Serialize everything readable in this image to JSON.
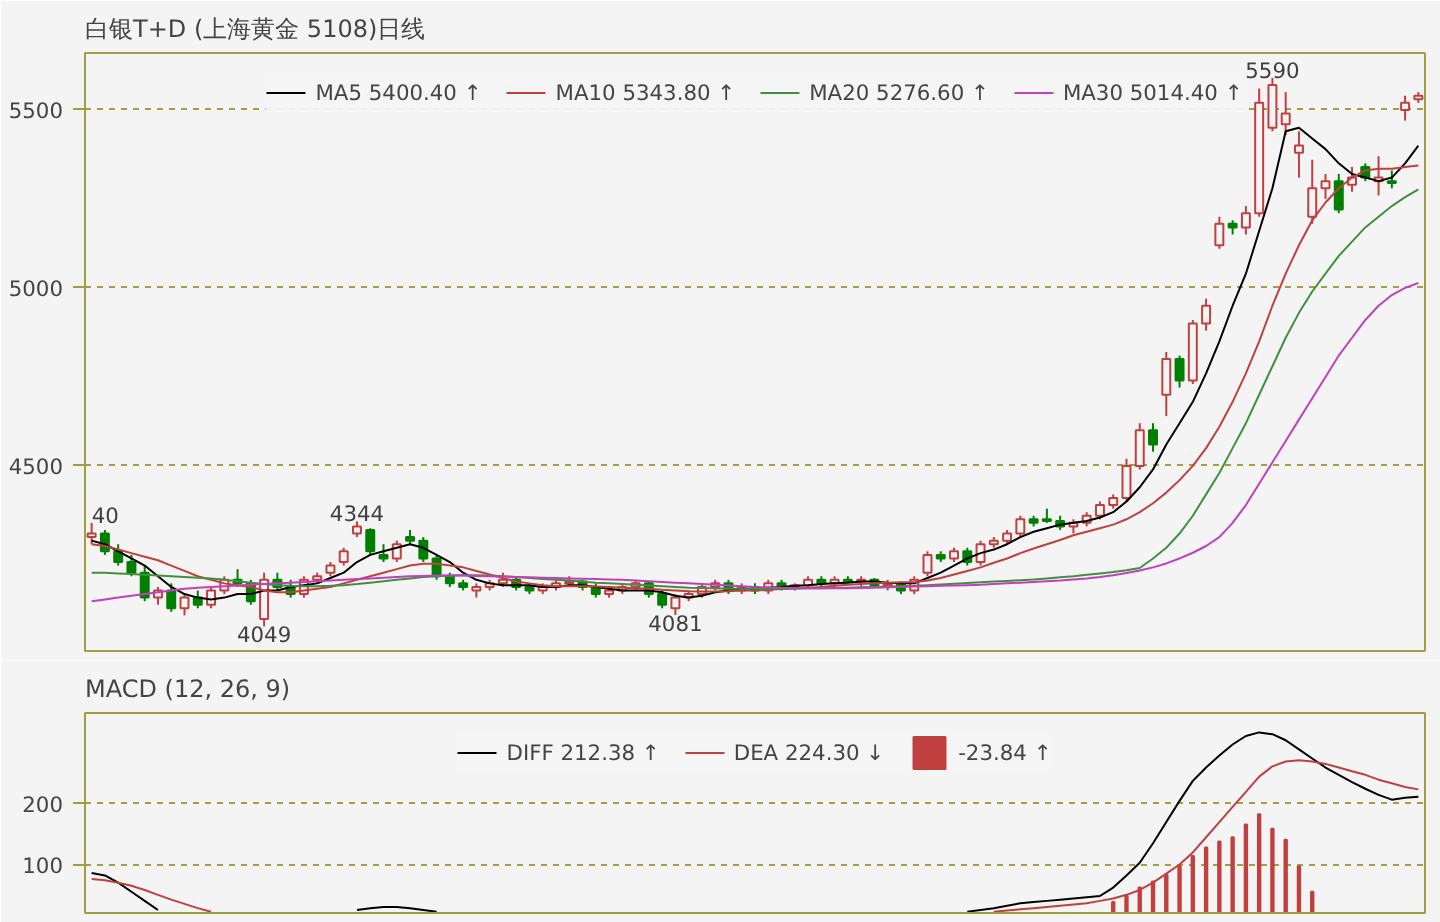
{
  "chart_data": [
    {
      "type": "candlestick",
      "title": "白银T+D (上海黄金 5108)日线",
      "categories": [
        null,
        null,
        null,
        null,
        null,
        null,
        null,
        null,
        null,
        null,
        null,
        null,
        null,
        null,
        null,
        null,
        null,
        null,
        null,
        null,
        null,
        null,
        null,
        null,
        null,
        null,
        null,
        null,
        null,
        null,
        null,
        null,
        null,
        null,
        null,
        null,
        null,
        null,
        null,
        null,
        null,
        null,
        null,
        null,
        null,
        null,
        null,
        null,
        null,
        null,
        null,
        null,
        null,
        null,
        null,
        null,
        null,
        null,
        null,
        null,
        null,
        null,
        null,
        null,
        null,
        null,
        null,
        null,
        null,
        null,
        null,
        null,
        null,
        null,
        null,
        null,
        null,
        null,
        null,
        null,
        null,
        null,
        null,
        null,
        null,
        null,
        null,
        null,
        null,
        null,
        null,
        null,
        null,
        null,
        null,
        null,
        null,
        null,
        null,
        null,
        null
      ],
      "ohlc": [
        [
          4300,
          4340,
          4280,
          4310
        ],
        [
          4310,
          4320,
          4250,
          4260
        ],
        [
          4260,
          4280,
          4220,
          4230
        ],
        [
          4230,
          4250,
          4190,
          4200
        ],
        [
          4200,
          4220,
          4120,
          4130
        ],
        [
          4130,
          4160,
          4110,
          4150
        ],
        [
          4150,
          4170,
          4090,
          4100
        ],
        [
          4100,
          4140,
          4080,
          4130
        ],
        [
          4130,
          4150,
          4100,
          4110
        ],
        [
          4110,
          4160,
          4100,
          4150
        ],
        [
          4150,
          4190,
          4140,
          4180
        ],
        [
          4180,
          4210,
          4160,
          4170
        ],
        [
          4170,
          4180,
          4110,
          4120
        ],
        [
          4070,
          4200,
          4049,
          4180
        ],
        [
          4180,
          4200,
          4150,
          4160
        ],
        [
          4160,
          4180,
          4130,
          4140
        ],
        [
          4140,
          4190,
          4130,
          4180
        ],
        [
          4180,
          4200,
          4170,
          4190
        ],
        [
          4200,
          4230,
          4190,
          4220
        ],
        [
          4230,
          4270,
          4220,
          4260
        ],
        [
          4310,
          4344,
          4300,
          4330
        ],
        [
          4320,
          4325,
          4250,
          4260
        ],
        [
          4250,
          4280,
          4230,
          4240
        ],
        [
          4240,
          4290,
          4230,
          4280
        ],
        [
          4300,
          4320,
          4280,
          4290
        ],
        [
          4290,
          4300,
          4230,
          4240
        ],
        [
          4240,
          4250,
          4180,
          4190
        ],
        [
          4190,
          4200,
          4160,
          4170
        ],
        [
          4170,
          4180,
          4150,
          4160
        ],
        [
          4150,
          4170,
          4130,
          4160
        ],
        [
          4160,
          4180,
          4150,
          4170
        ],
        [
          4170,
          4200,
          4160,
          4180
        ],
        [
          4180,
          4190,
          4150,
          4160
        ],
        [
          4160,
          4170,
          4140,
          4150
        ],
        [
          4150,
          4170,
          4140,
          4160
        ],
        [
          4160,
          4180,
          4150,
          4170
        ],
        [
          4170,
          4190,
          4160,
          4175
        ],
        [
          4175,
          4180,
          4150,
          4160
        ],
        [
          4160,
          4170,
          4130,
          4140
        ],
        [
          4140,
          4160,
          4130,
          4150
        ],
        [
          4150,
          4170,
          4140,
          4160
        ],
        [
          4160,
          4180,
          4150,
          4170
        ],
        [
          4170,
          4175,
          4130,
          4140
        ],
        [
          4140,
          4150,
          4100,
          4110
        ],
        [
          4100,
          4140,
          4081,
          4130
        ],
        [
          4130,
          4150,
          4120,
          4140
        ],
        [
          4140,
          4170,
          4130,
          4160
        ],
        [
          4160,
          4180,
          4150,
          4170
        ],
        [
          4170,
          4180,
          4140,
          4150
        ],
        [
          4150,
          4170,
          4140,
          4160
        ],
        [
          4160,
          4170,
          4140,
          4150
        ],
        [
          4150,
          4180,
          4140,
          4170
        ],
        [
          4170,
          4180,
          4150,
          4160
        ],
        [
          4160,
          4170,
          4150,
          4165
        ],
        [
          4165,
          4190,
          4160,
          4180
        ],
        [
          4180,
          4190,
          4160,
          4170
        ],
        [
          4170,
          4190,
          4160,
          4180
        ],
        [
          4180,
          4190,
          4170,
          4175
        ],
        [
          4175,
          4190,
          4160,
          4180
        ],
        [
          4180,
          4185,
          4160,
          4165
        ],
        [
          4165,
          4180,
          4150,
          4170
        ],
        [
          4170,
          4175,
          4140,
          4150
        ],
        [
          4150,
          4190,
          4140,
          4180
        ],
        [
          4200,
          4260,
          4190,
          4250
        ],
        [
          4250,
          4260,
          4230,
          4240
        ],
        [
          4240,
          4270,
          4230,
          4260
        ],
        [
          4260,
          4270,
          4220,
          4230
        ],
        [
          4230,
          4290,
          4220,
          4280
        ],
        [
          4280,
          4300,
          4270,
          4290
        ],
        [
          4290,
          4320,
          4280,
          4310
        ],
        [
          4310,
          4360,
          4300,
          4350
        ],
        [
          4350,
          4360,
          4330,
          4340
        ],
        [
          4350,
          4380,
          4340,
          4345
        ],
        [
          4345,
          4360,
          4320,
          4330
        ],
        [
          4330,
          4350,
          4310,
          4340
        ],
        [
          4340,
          4370,
          4330,
          4360
        ],
        [
          4360,
          4400,
          4350,
          4390
        ],
        [
          4390,
          4420,
          4380,
          4410
        ],
        [
          4410,
          4520,
          4400,
          4500
        ],
        [
          4500,
          4620,
          4490,
          4600
        ],
        [
          4600,
          4620,
          4540,
          4560
        ],
        [
          4700,
          4820,
          4640,
          4800
        ],
        [
          4800,
          4810,
          4720,
          4740
        ],
        [
          4740,
          4910,
          4730,
          4900
        ],
        [
          4900,
          4970,
          4880,
          4950
        ],
        [
          5120,
          5200,
          5110,
          5180
        ],
        [
          5180,
          5190,
          5150,
          5170
        ],
        [
          5170,
          5230,
          5150,
          5210
        ],
        [
          5210,
          5560,
          5200,
          5520
        ],
        [
          5450,
          5590,
          5440,
          5570
        ],
        [
          5460,
          5550,
          5430,
          5490
        ],
        [
          5380,
          5440,
          5310,
          5400
        ],
        [
          5200,
          5360,
          5180,
          5280
        ],
        [
          5280,
          5320,
          5250,
          5300
        ],
        [
          5300,
          5320,
          5210,
          5220
        ],
        [
          5290,
          5340,
          5270,
          5310
        ],
        [
          5340,
          5350,
          5300,
          5310
        ],
        [
          5300,
          5370,
          5260,
          5310
        ],
        [
          5300,
          5330,
          5280,
          5295
        ],
        [
          5500,
          5540,
          5470,
          5520
        ],
        [
          5530,
          5550,
          5520,
          5540
        ]
      ],
      "colors": [
        "#c04040",
        "#008000",
        "#008000",
        "#008000",
        "#008000",
        "#c04040",
        "#008000",
        "#c04040",
        "#008000",
        "#c04040",
        "#c04040",
        "#008000",
        "#008000",
        "#c04040",
        "#008000",
        "#008000",
        "#c04040",
        "#c04040",
        "#c04040",
        "#c04040",
        "#c04040",
        "#008000",
        "#008000",
        "#c04040",
        "#008000",
        "#008000",
        "#008000",
        "#008000",
        "#008000",
        "#c04040",
        "#c04040",
        "#c04040",
        "#008000",
        "#008000",
        "#c04040",
        "#c04040",
        "#c04040",
        "#008000",
        "#008000",
        "#c04040",
        "#c04040",
        "#c04040",
        "#008000",
        "#008000",
        "#c04040",
        "#c04040",
        "#c04040",
        "#c04040",
        "#008000",
        "#c04040",
        "#008000",
        "#c04040",
        "#008000",
        "#c04040",
        "#c04040",
        "#008000",
        "#c04040",
        "#008000",
        "#c04040",
        "#008000",
        "#c04040",
        "#008000",
        "#c04040",
        "#c04040",
        "#008000",
        "#c04040",
        "#008000",
        "#c04040",
        "#c04040",
        "#c04040",
        "#c04040",
        "#008000",
        "#008000",
        "#008000",
        "#c04040",
        "#c04040",
        "#c04040",
        "#c04040",
        "#c04040",
        "#c04040",
        "#008000",
        "#c04040",
        "#008000",
        "#c04040",
        "#c04040",
        "#c04040",
        "#008000",
        "#c04040",
        "#c04040",
        "#c04040",
        "#c04040",
        "#c04040",
        "#c04040",
        "#c04040",
        "#008000",
        "#c04040",
        "#008000",
        "#c04040",
        "#008000",
        "#c04040",
        "#c04040"
      ],
      "series": [
        {
          "name": "MA5 5400.40 ↑",
          "type": "line",
          "color": "#000000",
          "values": [
            4290,
            4280,
            4260,
            4240,
            4220,
            4190,
            4160,
            4140,
            4130,
            4125,
            4130,
            4140,
            4140,
            4150,
            4150,
            4160,
            4165,
            4170,
            4185,
            4200,
            4230,
            4250,
            4260,
            4270,
            4280,
            4270,
            4250,
            4230,
            4200,
            4180,
            4170,
            4165,
            4165,
            4165,
            4160,
            4160,
            4165,
            4165,
            4160,
            4155,
            4150,
            4150,
            4150,
            4145,
            4135,
            4130,
            4135,
            4145,
            4150,
            4155,
            4155,
            4158,
            4160,
            4163,
            4165,
            4168,
            4170,
            4172,
            4175,
            4175,
            4172,
            4170,
            4170,
            4185,
            4200,
            4220,
            4240,
            4255,
            4265,
            4280,
            4300,
            4315,
            4325,
            4335,
            4340,
            4345,
            4355,
            4370,
            4400,
            4440,
            4490,
            4560,
            4620,
            4680,
            4760,
            4850,
            4950,
            5040,
            5160,
            5280,
            5440,
            5450,
            5420,
            5390,
            5350,
            5320,
            5310,
            5300,
            5310,
            5350,
            5400
          ]
        },
        {
          "name": "MA10 5343.80 ↑",
          "type": "line",
          "color": "#c04040",
          "values": [
            4280,
            4275,
            4265,
            4255,
            4245,
            4235,
            4220,
            4205,
            4190,
            4180,
            4170,
            4165,
            4160,
            4150,
            4145,
            4145,
            4150,
            4155,
            4160,
            4170,
            4180,
            4190,
            4200,
            4210,
            4220,
            4225,
            4225,
            4220,
            4215,
            4205,
            4195,
            4185,
            4175,
            4170,
            4165,
            4162,
            4162,
            4162,
            4161,
            4160,
            4158,
            4156,
            4155,
            4152,
            4150,
            4148,
            4147,
            4147,
            4148,
            4150,
            4150,
            4152,
            4154,
            4156,
            4158,
            4160,
            4163,
            4166,
            4168,
            4170,
            4172,
            4173,
            4173,
            4178,
            4185,
            4195,
            4205,
            4215,
            4228,
            4240,
            4255,
            4268,
            4280,
            4292,
            4305,
            4315,
            4325,
            4335,
            4350,
            4370,
            4395,
            4425,
            4460,
            4500,
            4550,
            4610,
            4680,
            4760,
            4850,
            4950,
            5040,
            5120,
            5190,
            5240,
            5280,
            5310,
            5330,
            5335,
            5335,
            5340,
            5344
          ]
        },
        {
          "name": "MA20 5276.60 ↑",
          "type": "line",
          "color": "#409040",
          "values": [
            4200,
            4200,
            4198,
            4196,
            4194,
            4192,
            4190,
            4188,
            4186,
            4184,
            4180,
            4176,
            4172,
            4168,
            4165,
            4163,
            4162,
            4162,
            4163,
            4165,
            4168,
            4172,
            4176,
            4180,
            4184,
            4188,
            4190,
            4192,
            4193,
            4193,
            4192,
            4190,
            4188,
            4185,
            4182,
            4180,
            4178,
            4175,
            4172,
            4170,
            4168,
            4166,
            4164,
            4162,
            4160,
            4158,
            4157,
            4156,
            4155,
            4155,
            4155,
            4155,
            4155,
            4155,
            4156,
            4156,
            4157,
            4158,
            4159,
            4160,
            4161,
            4162,
            4163,
            4165,
            4167,
            4169,
            4171,
            4173,
            4175,
            4177,
            4179,
            4181,
            4184,
            4187,
            4190,
            4194,
            4198,
            4202,
            4207,
            4213,
            4240,
            4270,
            4310,
            4360,
            4420,
            4480,
            4550,
            4620,
            4700,
            4780,
            4860,
            4930,
            4990,
            5040,
            5090,
            5130,
            5170,
            5200,
            5230,
            5255,
            5277
          ]
        },
        {
          "name": "MA30 5014.40 ↑",
          "type": "line",
          "color": "#c040c0",
          "values": [
            4120,
            4125,
            4130,
            4135,
            4140,
            4145,
            4150,
            4155,
            4158,
            4160,
            4162,
            4164,
            4166,
            4168,
            4170,
            4172,
            4174,
            4176,
            4178,
            4180,
            4182,
            4184,
            4186,
            4188,
            4190,
            4191,
            4192,
            4192,
            4192,
            4191,
            4190,
            4189,
            4188,
            4187,
            4186,
            4185,
            4184,
            4183,
            4182,
            4181,
            4180,
            4178,
            4176,
            4174,
            4172,
            4170,
            4168,
            4166,
            4164,
            4162,
            4160,
            4159,
            4158,
            4157,
            4156,
            4156,
            4156,
            4156,
            4157,
            4158,
            4159,
            4160,
            4161,
            4162,
            4163,
            4164,
            4165,
            4166,
            4168,
            4170,
            4172,
            4174,
            4176,
            4178,
            4181,
            4184,
            4188,
            4193,
            4199,
            4206,
            4215,
            4226,
            4240,
            4256,
            4275,
            4300,
            4340,
            4390,
            4450,
            4510,
            4570,
            4630,
            4690,
            4750,
            4810,
            4860,
            4910,
            4950,
            4980,
            5000,
            5014
          ]
        }
      ],
      "ylim": [
        3980,
        5660
      ],
      "yticks": [
        4500,
        5000,
        5500
      ],
      "grid": "y",
      "legend": "top",
      "tick_labels": "y",
      "annotations": [
        {
          "text": "40",
          "y": 4340
        },
        {
          "text": "4344",
          "y": 4344
        },
        {
          "text": "4049",
          "y": 4049
        },
        {
          "text": "4081",
          "y": 4081
        },
        {
          "text": "5590",
          "y": 5590
        }
      ]
    },
    {
      "type": "line",
      "title": "MACD (12, 26, 9)",
      "categories": [
        null,
        null,
        null,
        null,
        null,
        null,
        null,
        null,
        null,
        null,
        null,
        null,
        null,
        null,
        null,
        null,
        null,
        null,
        null,
        null,
        null,
        null,
        null,
        null,
        null,
        null,
        null,
        null,
        null,
        null,
        null,
        null,
        null,
        null,
        null,
        null,
        null,
        null,
        null,
        null,
        null,
        null,
        null,
        null,
        null,
        null,
        null,
        null,
        null,
        null,
        null,
        null,
        null,
        null,
        null,
        null,
        null,
        null,
        null,
        null,
        null,
        null,
        null,
        null,
        null,
        null,
        null,
        null,
        null,
        null,
        null,
        null,
        null,
        null,
        null,
        null,
        null,
        null,
        null,
        null,
        null,
        null,
        null,
        null,
        null,
        null,
        null,
        null,
        null,
        null,
        null,
        null,
        null,
        null,
        null,
        null,
        null,
        null,
        null,
        null,
        null
      ],
      "series": [
        {
          "name": "DIFF 212.38 ↑",
          "type": "line",
          "color": "#000000",
          "values": [
            86,
            82,
            70,
            55,
            40,
            25,
            null,
            null,
            null,
            null,
            null,
            null,
            null,
            null,
            null,
            null,
            null,
            null,
            null,
            null,
            25,
            28,
            30,
            30,
            28,
            25,
            22,
            null,
            null,
            null,
            null,
            null,
            null,
            null,
            null,
            null,
            null,
            null,
            null,
            null,
            null,
            null,
            null,
            null,
            null,
            null,
            null,
            null,
            null,
            null,
            null,
            null,
            null,
            null,
            null,
            null,
            null,
            null,
            null,
            null,
            null,
            null,
            null,
            null,
            null,
            null,
            22,
            25,
            28,
            32,
            36,
            38,
            40,
            42,
            44,
            46,
            48,
            62,
            82,
            103,
            135,
            170,
            205,
            238,
            260,
            280,
            298,
            312,
            318,
            315,
            305,
            290,
            275,
            260,
            248,
            236,
            225,
            215,
            207,
            210,
            212
          ]
        },
        {
          "name": "DEA 224.30 ↓",
          "type": "line",
          "color": "#c04040",
          "values": [
            76,
            74,
            70,
            65,
            58,
            50,
            42,
            35,
            28,
            22,
            null,
            null,
            null,
            null,
            null,
            null,
            null,
            null,
            null,
            null,
            null,
            null,
            null,
            null,
            null,
            null,
            null,
            null,
            null,
            null,
            null,
            null,
            null,
            null,
            null,
            null,
            null,
            null,
            null,
            null,
            null,
            null,
            null,
            null,
            null,
            null,
            null,
            null,
            null,
            null,
            null,
            null,
            null,
            null,
            null,
            null,
            null,
            null,
            null,
            null,
            null,
            null,
            null,
            null,
            null,
            null,
            null,
            null,
            22,
            24,
            26,
            28,
            30,
            32,
            34,
            36,
            40,
            44,
            50,
            58,
            70,
            85,
            100,
            120,
            145,
            170,
            195,
            220,
            245,
            262,
            270,
            272,
            270,
            266,
            260,
            254,
            248,
            240,
            234,
            228,
            224
          ]
        },
        {
          "name": "-23.84 ↑",
          "type": "bar",
          "color": "#c04040",
          "values": [
            null,
            null,
            null,
            null,
            null,
            null,
            null,
            null,
            null,
            null,
            null,
            null,
            null,
            null,
            null,
            null,
            null,
            null,
            null,
            null,
            null,
            null,
            null,
            null,
            null,
            null,
            null,
            null,
            null,
            null,
            null,
            null,
            null,
            null,
            null,
            null,
            null,
            null,
            null,
            null,
            null,
            null,
            null,
            null,
            null,
            null,
            null,
            null,
            null,
            null,
            null,
            null,
            null,
            null,
            null,
            null,
            null,
            null,
            null,
            null,
            null,
            null,
            null,
            null,
            null,
            null,
            null,
            null,
            null,
            null,
            null,
            null,
            null,
            null,
            null,
            null,
            null,
            38,
            48,
            62,
            72,
            83,
            97,
            114,
            128,
            138,
            145,
            166,
            183,
            159,
            141,
            97,
            55,
            null,
            null,
            null,
            null,
            null,
            null,
            null,
            null
          ]
        }
      ],
      "ylim": [
        20,
        350
      ],
      "yticks": [
        100,
        200
      ],
      "grid": "y",
      "legend": "top",
      "tick_labels": "y"
    }
  ]
}
